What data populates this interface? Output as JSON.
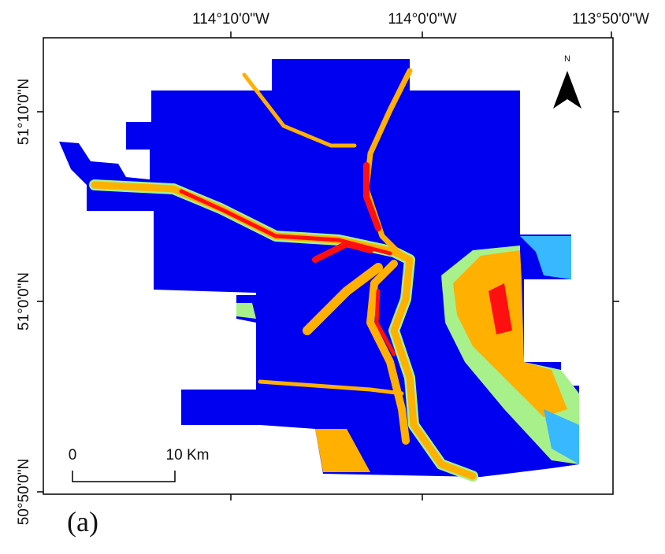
{
  "map": {
    "longitude_labels": [
      "114°10'0\"W",
      "114°0'0\"W",
      "113°50'0\"W"
    ],
    "latitude_labels": [
      "51°10'0\"N",
      "51°0'0\"N",
      "50°50'0\"N"
    ],
    "north_label": "N",
    "scale_bar": {
      "start": "0",
      "end": "10 Km"
    },
    "panel_label": "(a)"
  }
}
